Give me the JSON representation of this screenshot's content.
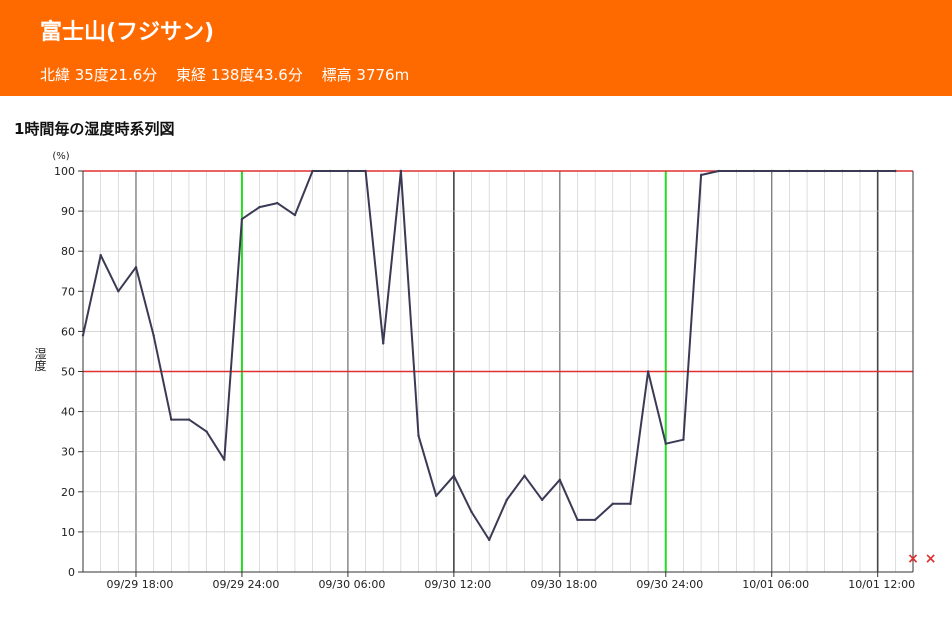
{
  "header": {
    "title": "富士山(フジサン)",
    "latitude": "北緯 35度21.6分",
    "longitude": "東経 138度43.6分",
    "elevation": "標高 3776m",
    "background_color": "#ff6a00"
  },
  "chart_title": "1時間毎の湿度時系列図",
  "chart_data": {
    "type": "line",
    "title": "1時間毎の湿度時系列図",
    "ylabel": "湿度",
    "yunit": "(%)",
    "ylim": [
      0,
      100
    ],
    "yticks": [
      0,
      10,
      20,
      30,
      40,
      50,
      60,
      70,
      80,
      90,
      100
    ],
    "reference_lines": [
      50,
      100
    ],
    "reference_color": "#e03030",
    "x_start": "09/29 15:00",
    "x_end": "10/01 14:00",
    "xtick_labels": [
      "09/29 18:00",
      "09/29 24:00",
      "09/30 06:00",
      "09/30 12:00",
      "09/30 18:00",
      "09/30 24:00",
      "10/01 06:00",
      "10/01 12:00"
    ],
    "line_color": "#3a3a55",
    "day_boundary_color": "#22dd22",
    "grid": true,
    "series": [
      {
        "values": [
          59,
          79,
          70,
          76,
          59,
          38,
          38,
          35,
          28,
          88,
          91,
          92,
          89,
          100,
          100,
          100,
          100,
          57,
          100,
          34,
          19,
          24,
          15,
          8,
          18,
          24,
          18,
          23,
          13,
          13,
          17,
          17,
          50,
          32,
          33,
          99,
          100,
          100,
          100,
          100,
          100,
          100,
          100,
          100,
          100,
          100,
          100
        ]
      }
    ],
    "missing_markers": [
      "10/01 13:00",
      "10/01 14:00"
    ],
    "missing_marker_color": "#e03030"
  }
}
